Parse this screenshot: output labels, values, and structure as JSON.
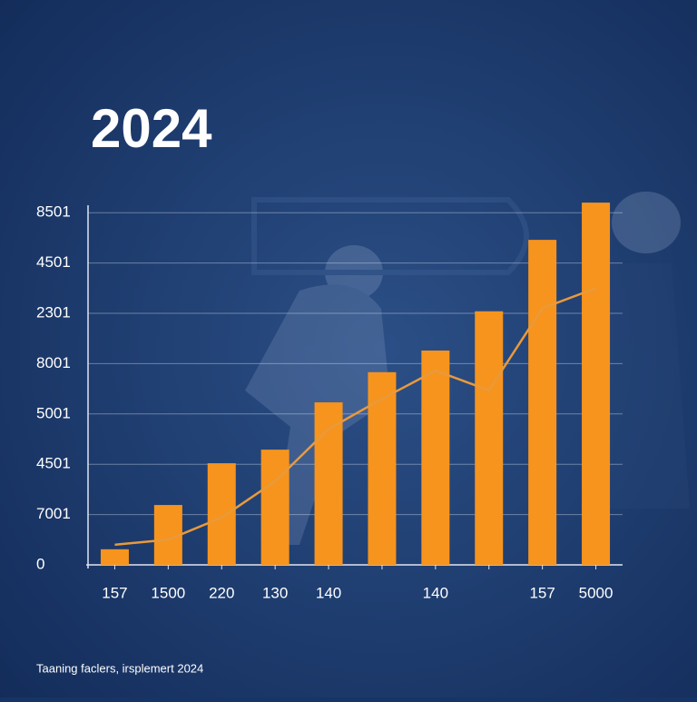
{
  "chart_data": {
    "type": "bar",
    "title": "2024",
    "footnote": "Taaning faclers, irsplemert 2024",
    "categories": [
      "157",
      "1500",
      "220",
      "130",
      "140",
      null,
      "140",
      null,
      "157",
      "5000"
    ],
    "series": [
      {
        "color": "#f7941d",
        "values": [
          0.31,
          1.19,
          2.02,
          2.29,
          3.23,
          3.83,
          4.26,
          5.04,
          6.46,
          7.2
        ]
      },
      {
        "type": "line",
        "color": "#e89a3c",
        "values": [
          0.4,
          0.5,
          0.94,
          1.66,
          2.7,
          3.3,
          3.86,
          3.47,
          5.1,
          5.5
        ]
      }
    ],
    "ylim": [
      0,
      7.3
    ],
    "yticks": [
      {
        "value": 0,
        "label": "0"
      },
      {
        "value": 1,
        "label": "7001"
      },
      {
        "value": 2,
        "label": "4501"
      },
      {
        "value": 3,
        "label": "5001"
      },
      {
        "value": 4,
        "label": "8001"
      },
      {
        "value": 5,
        "label": "2301"
      },
      {
        "value": 6,
        "label": "4501"
      },
      {
        "value": 7,
        "label": "8501"
      }
    ],
    "grid": true
  }
}
